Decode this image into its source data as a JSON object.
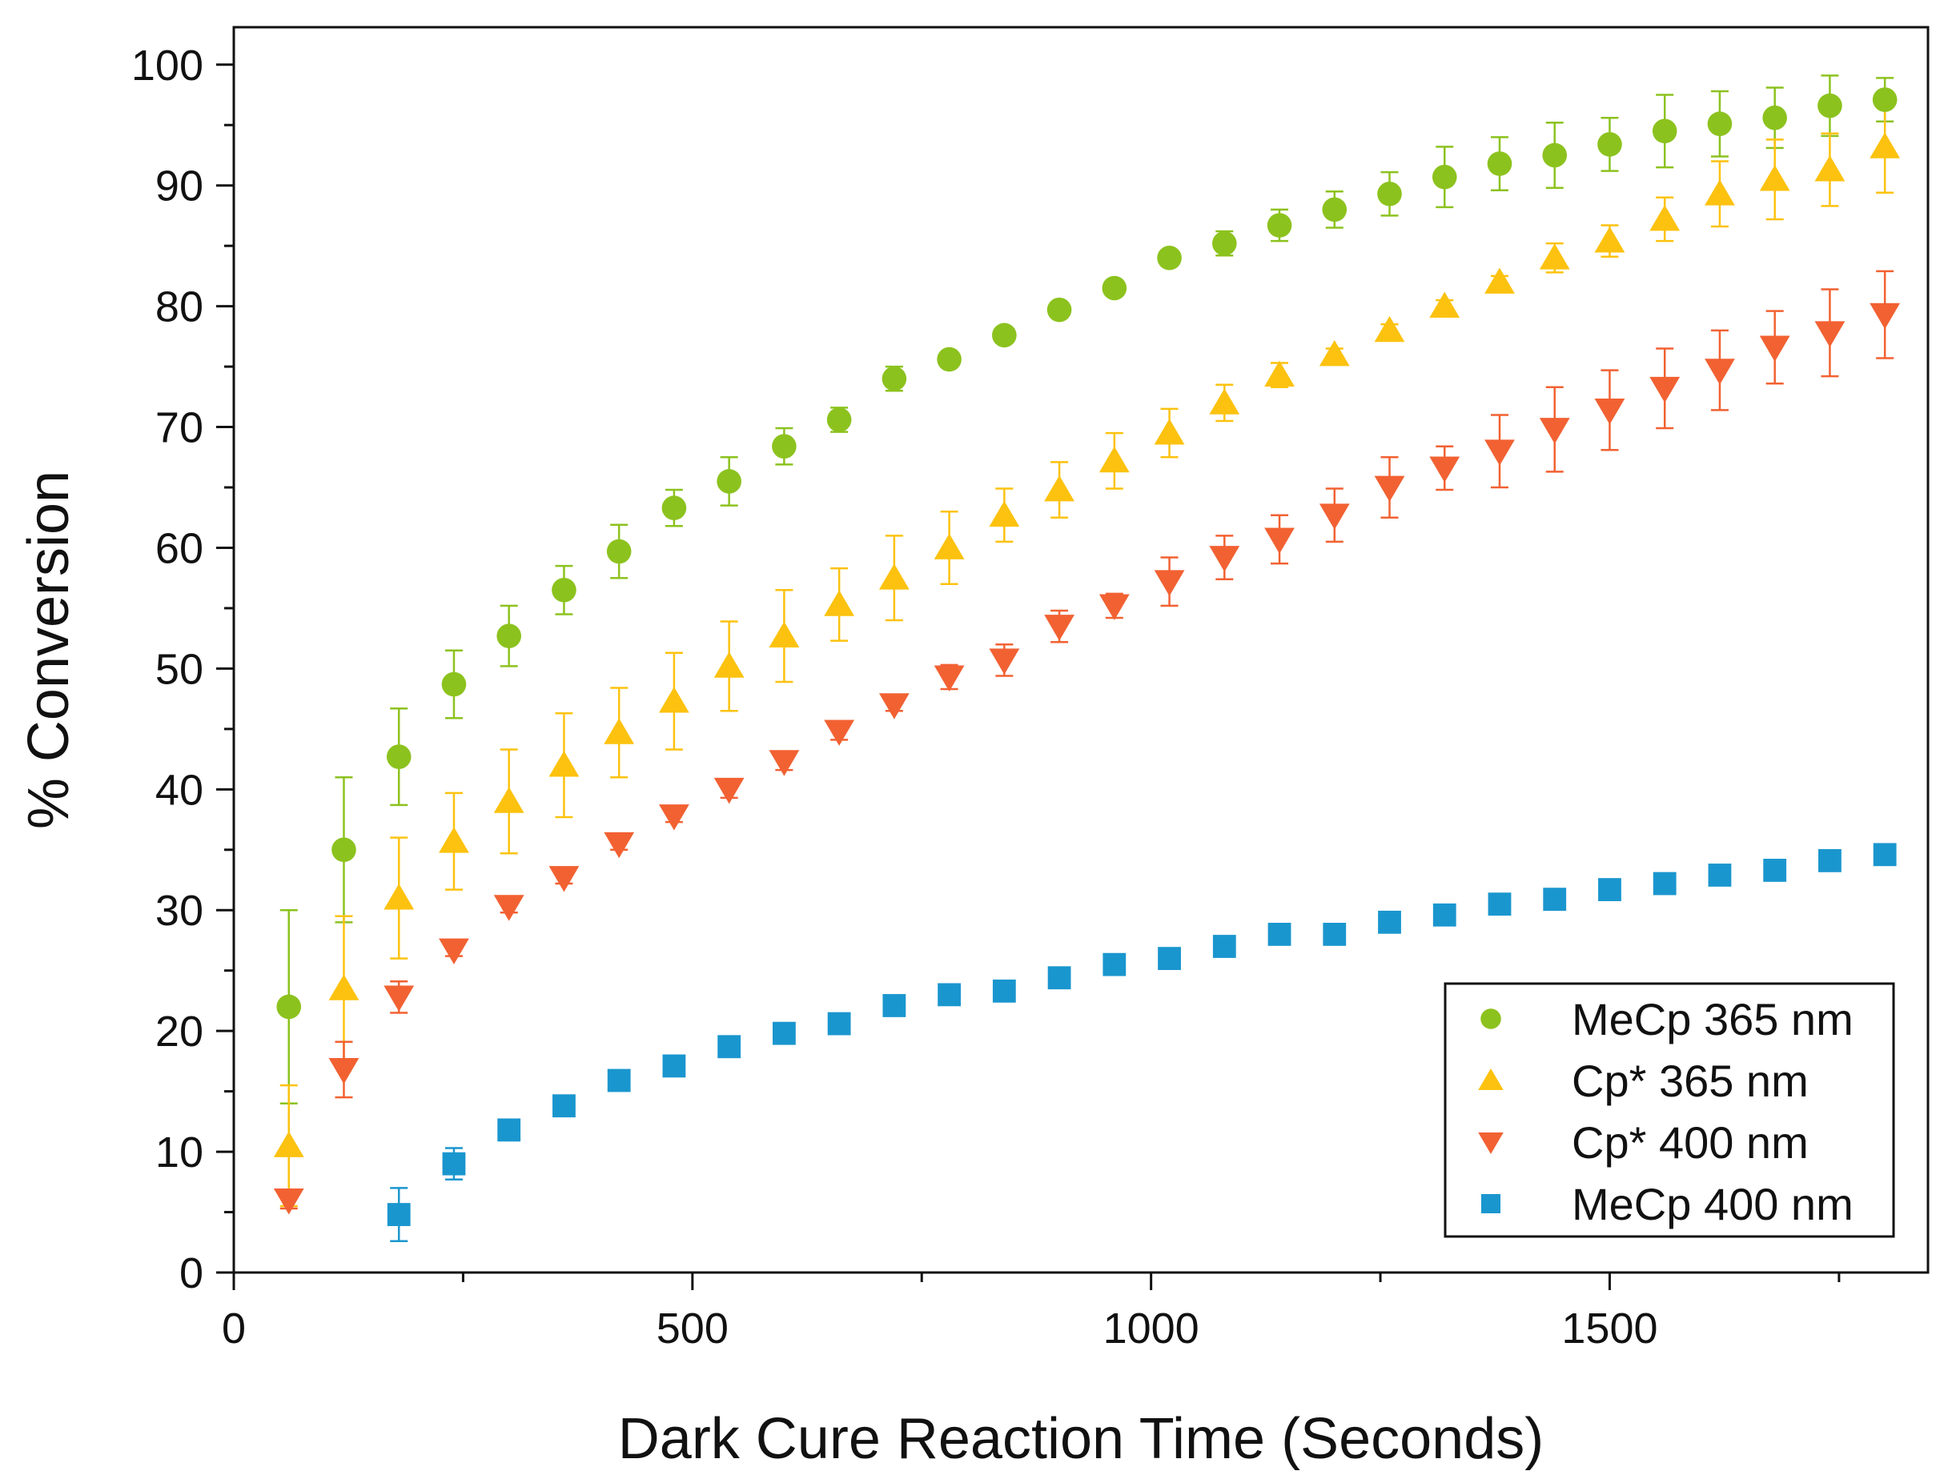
{
  "chart_data": {
    "type": "scatter",
    "title": "",
    "xlabel": "Dark Cure Reaction Time (Seconds)",
    "ylabel": "% Conversion",
    "xlim": [
      0,
      1847
    ],
    "ylim": [
      0,
      103.1
    ],
    "xticks": [
      0,
      500,
      1000,
      1500
    ],
    "yticks": [
      0,
      10,
      20,
      30,
      40,
      50,
      60,
      70,
      80,
      90,
      100
    ],
    "grid": false,
    "legend_position": "bottom-right",
    "series": [
      {
        "name": "MeCp 365 nm",
        "marker": "circle",
        "color": "#8cc21e",
        "x": [
          60,
          120,
          180,
          240,
          300,
          360,
          420,
          480,
          540,
          600,
          660,
          720,
          780,
          840,
          900,
          960,
          1020,
          1080,
          1140,
          1200,
          1260,
          1320,
          1380,
          1440,
          1500,
          1560,
          1620,
          1680,
          1740,
          1800
        ],
        "y": [
          22,
          35,
          42.7,
          48.7,
          52.7,
          56.5,
          59.7,
          63.3,
          65.5,
          68.4,
          70.6,
          74,
          75.6,
          77.6,
          79.7,
          81.5,
          84,
          85.2,
          86.7,
          88,
          89.3,
          90.7,
          91.8,
          92.5,
          93.4,
          94.5,
          95.1,
          95.6,
          96.6,
          97.1
        ],
        "err": [
          8,
          6,
          4,
          2.8,
          2.5,
          2,
          2.2,
          1.5,
          2,
          1.5,
          1,
          1,
          0.5,
          0.5,
          0.5,
          0.5,
          0.5,
          1,
          1.3,
          1.5,
          1.8,
          2.5,
          2.2,
          2.7,
          2.2,
          3,
          2.7,
          2.5,
          2.5,
          1.8
        ]
      },
      {
        "name": "Cp* 365 nm",
        "marker": "triangle-up",
        "color": "#fcc20f",
        "x": [
          60,
          120,
          180,
          240,
          300,
          360,
          420,
          480,
          540,
          600,
          660,
          720,
          780,
          840,
          900,
          960,
          1020,
          1080,
          1140,
          1200,
          1260,
          1320,
          1380,
          1440,
          1500,
          1560,
          1620,
          1680,
          1740,
          1800
        ],
        "y": [
          10.5,
          23.5,
          31,
          35.7,
          39,
          42,
          44.7,
          47.3,
          50.2,
          52.7,
          55.3,
          57.5,
          60,
          62.7,
          64.8,
          67.2,
          69.5,
          72,
          74.3,
          76,
          78,
          80,
          82,
          84,
          85.4,
          87.2,
          89.3,
          90.5,
          91.3,
          93.2
        ],
        "err": [
          5,
          6,
          5,
          4,
          4.3,
          4.3,
          3.7,
          4,
          3.7,
          3.8,
          3,
          3.5,
          3,
          2.2,
          2.3,
          2.3,
          2,
          1.5,
          1,
          0.5,
          0.5,
          0.5,
          0.5,
          1.2,
          1.3,
          1.8,
          2.7,
          3.3,
          3,
          3.8
        ]
      },
      {
        "name": "Cp* 400 nm",
        "marker": "triangle-down",
        "color": "#f26132",
        "x": [
          60,
          120,
          180,
          240,
          300,
          360,
          420,
          480,
          540,
          600,
          660,
          720,
          780,
          840,
          900,
          960,
          1020,
          1080,
          1140,
          1200,
          1260,
          1320,
          1380,
          1440,
          1500,
          1560,
          1620,
          1680,
          1740,
          1800
        ],
        "y": [
          6,
          16.8,
          22.8,
          26.7,
          30.3,
          32.7,
          35.5,
          37.8,
          40,
          42.3,
          44.8,
          47,
          49.3,
          50.7,
          53.5,
          55.2,
          57.2,
          59.2,
          60.7,
          62.7,
          65,
          66.6,
          68,
          69.8,
          71.4,
          73.2,
          74.7,
          76.6,
          77.8,
          79.3
        ],
        "err": [
          0.7,
          2.3,
          1.3,
          0.5,
          0.5,
          0.5,
          0.5,
          0.5,
          0.7,
          0.7,
          0.7,
          0.5,
          1,
          1.3,
          1.3,
          1,
          2,
          1.8,
          2,
          2.2,
          2.5,
          1.8,
          3,
          3.5,
          3.3,
          3.3,
          3.3,
          3,
          3.6,
          3.6
        ]
      },
      {
        "name": "MeCp 400 nm",
        "marker": "square",
        "color": "#1a96ce",
        "x": [
          180,
          240,
          300,
          360,
          420,
          480,
          540,
          600,
          660,
          720,
          780,
          840,
          900,
          960,
          1020,
          1080,
          1140,
          1200,
          1260,
          1320,
          1380,
          1440,
          1500,
          1560,
          1620,
          1680,
          1740,
          1800
        ],
        "y": [
          4.8,
          9,
          11.8,
          13.8,
          15.9,
          17.1,
          18.7,
          19.8,
          20.6,
          22.1,
          23,
          23.3,
          24.4,
          25.5,
          26,
          27,
          28,
          28,
          29,
          29.6,
          30.5,
          30.9,
          31.7,
          32.2,
          32.9,
          33.3,
          34.1,
          34.6
        ],
        "err": [
          2.2,
          1.3,
          0.3,
          0.3,
          0.3,
          0.3,
          0.3,
          0.3,
          0.3,
          0.3,
          0.3,
          0.3,
          0.3,
          0.3,
          0.3,
          0.3,
          0.3,
          0.3,
          0.7,
          0.3,
          0.3,
          0.3,
          0.3,
          0.3,
          0.3,
          0.3,
          0.3,
          0.3
        ]
      }
    ]
  }
}
